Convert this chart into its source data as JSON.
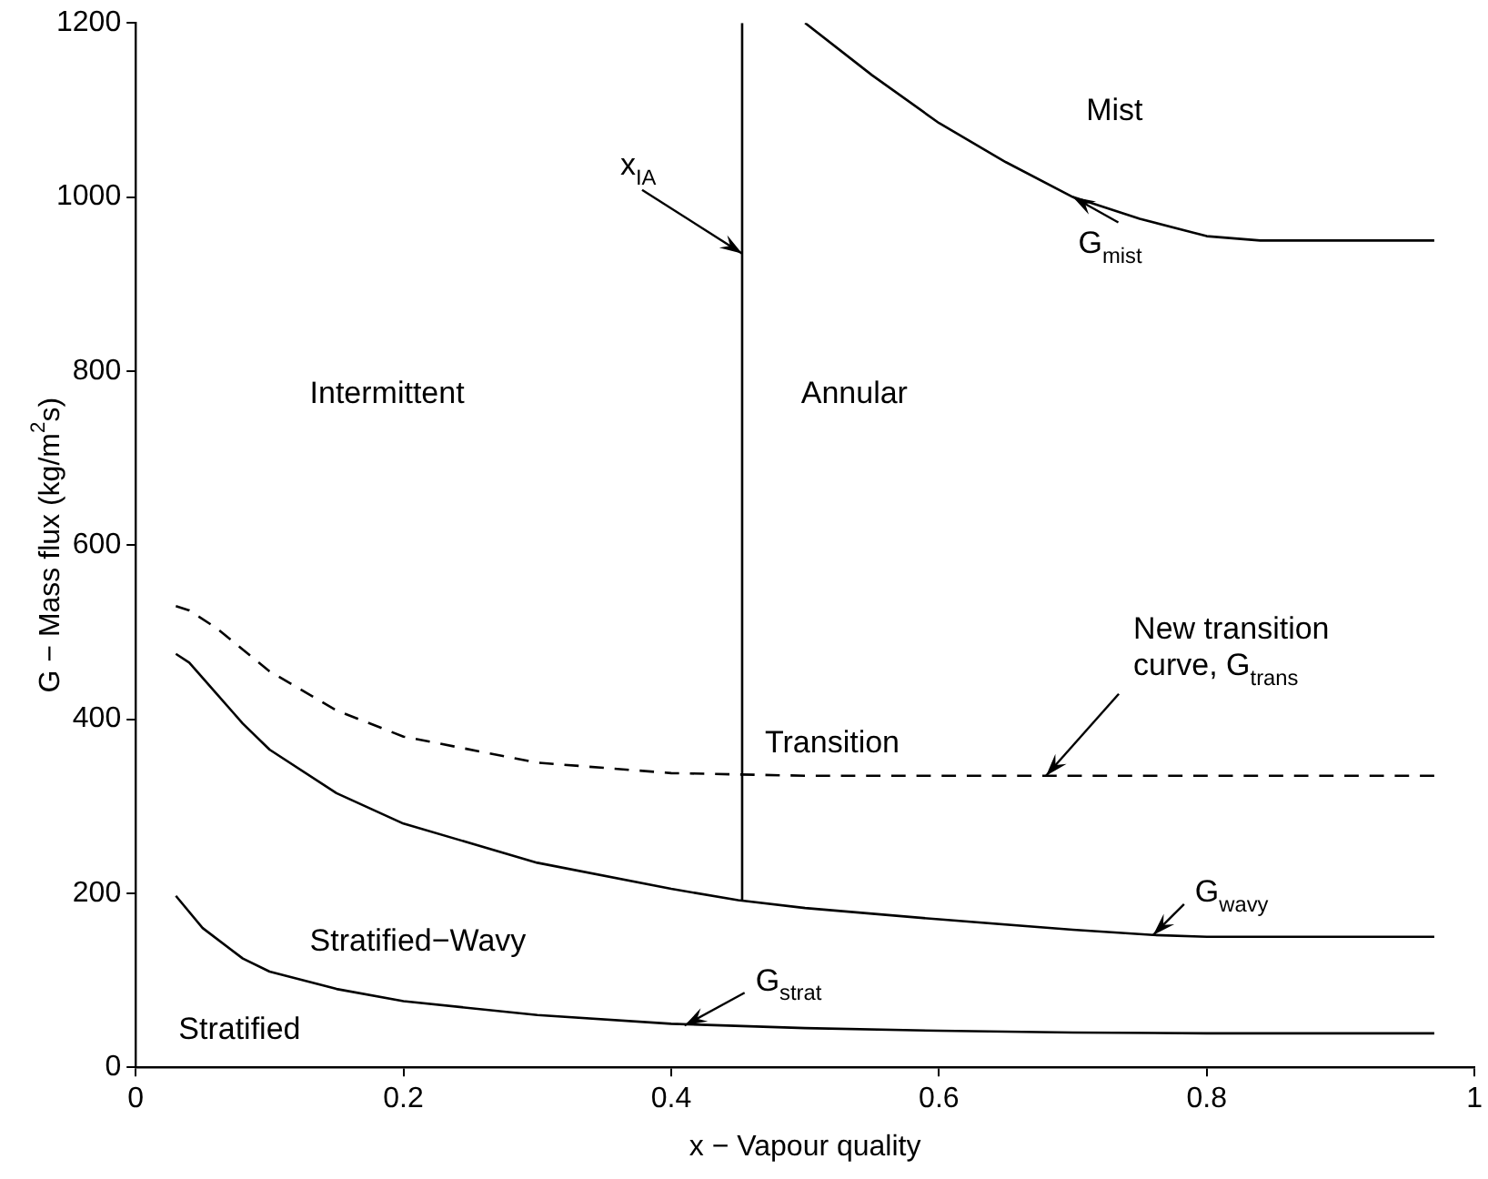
{
  "chart_data": {
    "type": "line",
    "xlabel": "x − Vapour quality",
    "ylabel": "G − Mass flux (kg/m$^{2}$s)",
    "xlim": [
      0,
      1
    ],
    "xticks": [
      0,
      0.2,
      0.4,
      0.6,
      0.8,
      1
    ],
    "ylim": [
      0,
      1200
    ],
    "yticks": [
      0,
      200,
      400,
      600,
      800,
      1000,
      1200
    ],
    "grid": false,
    "legend": false,
    "marker": "none",
    "series": [
      {
        "color": "#000000",
        "line_style": "dashed",
        "x": [
          0.03,
          0.04,
          0.06,
          0.08,
          0.1,
          0.15,
          0.2,
          0.3,
          0.4,
          0.5,
          0.97
        ],
        "values": [
          530,
          525,
          505,
          480,
          455,
          410,
          380,
          350,
          338,
          335,
          335
        ]
      },
      {
        "color": "#000000",
        "line_style": "solid",
        "x": [
          0.03,
          0.04,
          0.06,
          0.08,
          0.1,
          0.15,
          0.2,
          0.3,
          0.4,
          0.45,
          0.5,
          0.6,
          0.7,
          0.76,
          0.8,
          0.97
        ],
        "values": [
          475,
          465,
          430,
          395,
          365,
          315,
          280,
          235,
          205,
          192,
          183,
          170,
          158,
          152,
          150,
          150
        ]
      },
      {
        "color": "#000000",
        "line_style": "solid",
        "x": [
          0.03,
          0.05,
          0.08,
          0.1,
          0.15,
          0.2,
          0.3,
          0.4,
          0.5,
          0.6,
          0.7,
          0.8,
          0.97
        ],
        "values": [
          197,
          160,
          125,
          110,
          90,
          76,
          60,
          50,
          45,
          42,
          40,
          39,
          39
        ]
      },
      {
        "color": "#000000",
        "line_style": "solid",
        "x": [
          0.5,
          0.55,
          0.6,
          0.65,
          0.7,
          0.75,
          0.8,
          0.84,
          0.97
        ],
        "values": [
          1200,
          1140,
          1085,
          1040,
          1000,
          975,
          955,
          950,
          950
        ]
      },
      {
        "color": "#000000",
        "line_style": "solid",
        "x": [
          0.453,
          0.453
        ],
        "values": [
          192,
          1200
        ]
      }
    ],
    "annotations": [
      "Intermittent",
      "Annular",
      "Mist",
      "Transition",
      "Stratified−Wavy",
      "Stratified",
      {
        "text": "x$_{IA}$",
        "x": 0.453,
        "y": 935
      },
      {
        "text": "G$_{mist}$",
        "x": 0.7,
        "y": 1000
      },
      {
        "text": "New transition curve, G$_{trans}$",
        "x": 0.68,
        "y": 335
      },
      {
        "text": "G$_{wavy}$",
        "x": 0.76,
        "y": 152
      },
      {
        "text": "G$_{strat}$",
        "x": 0.41,
        "y": 48
      }
    ]
  }
}
